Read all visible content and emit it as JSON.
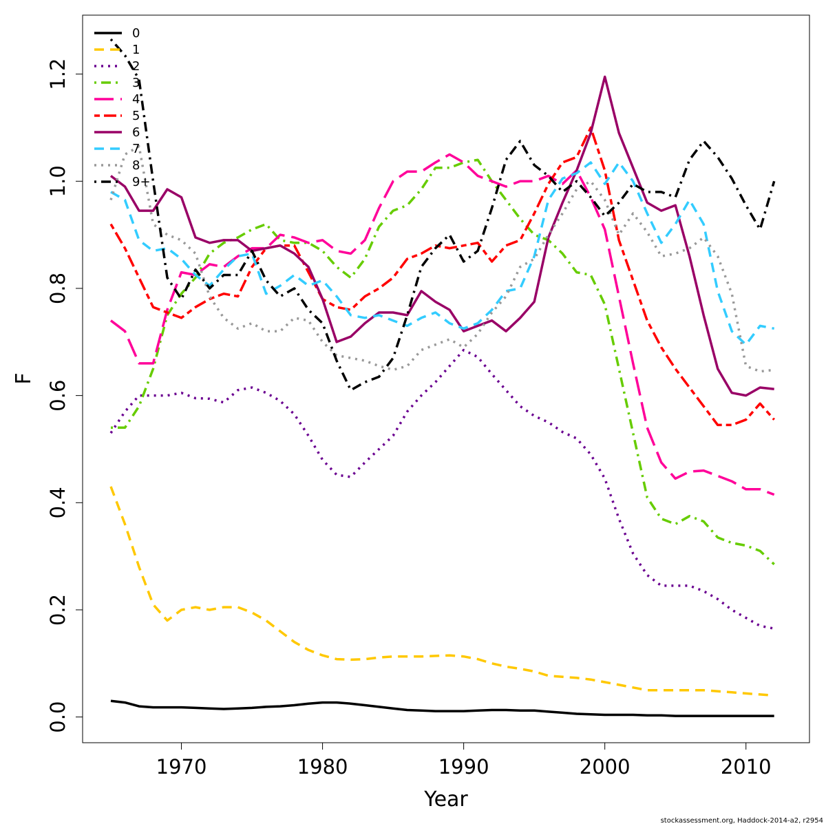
{
  "caption": "stockassessment.org, Haddock-2014-a2, r2954",
  "chart_data": {
    "type": "line",
    "xlabel": "Year",
    "ylabel": "F",
    "xlim": [
      1963,
      2014.5
    ],
    "ylim": [
      -0.048,
      1.31
    ],
    "x_ticks": [
      1970,
      1980,
      1990,
      2000,
      2010
    ],
    "y_ticks": [
      0.0,
      0.2,
      0.4,
      0.6,
      0.8,
      1.0,
      1.2
    ],
    "x_tick_labels": [
      "1970",
      "1980",
      "1990",
      "2000",
      "2010"
    ],
    "y_tick_labels": [
      "0.0",
      "0.2",
      "0.4",
      "0.6",
      "0.8",
      "1.0",
      "1.2"
    ],
    "grid": false,
    "legend_position": "top-left",
    "x": [
      1965,
      1966,
      1967,
      1968,
      1969,
      1970,
      1971,
      1972,
      1973,
      1974,
      1975,
      1976,
      1977,
      1978,
      1979,
      1980,
      1981,
      1982,
      1983,
      1984,
      1985,
      1986,
      1987,
      1988,
      1989,
      1990,
      1991,
      1992,
      1993,
      1994,
      1995,
      1996,
      1997,
      1998,
      1999,
      2000,
      2001,
      2002,
      2003,
      2004,
      2005,
      2006,
      2007,
      2008,
      2009,
      2010,
      2011,
      2012
    ],
    "series": [
      {
        "name": "0",
        "color": "#000000",
        "dash": "solid",
        "values": [
          0.03,
          0.027,
          0.02,
          0.018,
          0.018,
          0.018,
          0.017,
          0.016,
          0.015,
          0.016,
          0.017,
          0.019,
          0.02,
          0.022,
          0.025,
          0.027,
          0.027,
          0.025,
          0.022,
          0.019,
          0.016,
          0.013,
          0.012,
          0.011,
          0.011,
          0.011,
          0.012,
          0.013,
          0.013,
          0.012,
          0.012,
          0.01,
          0.008,
          0.006,
          0.005,
          0.004,
          0.004,
          0.004,
          0.003,
          0.003,
          0.002,
          0.002,
          0.002,
          0.002,
          0.002,
          0.002,
          0.002,
          0.002
        ]
      },
      {
        "name": "1",
        "color": "#FFC800",
        "dash": "dash",
        "values": [
          0.43,
          0.36,
          0.28,
          0.21,
          0.18,
          0.2,
          0.205,
          0.2,
          0.205,
          0.205,
          0.195,
          0.18,
          0.16,
          0.14,
          0.125,
          0.115,
          0.108,
          0.107,
          0.108,
          0.111,
          0.113,
          0.113,
          0.113,
          0.114,
          0.115,
          0.113,
          0.108,
          0.1,
          0.094,
          0.09,
          0.085,
          0.077,
          0.075,
          0.073,
          0.07,
          0.065,
          0.06,
          0.055,
          0.05,
          0.05,
          0.05,
          0.05,
          0.05,
          0.048,
          0.046,
          0.044,
          0.042,
          0.04
        ]
      },
      {
        "name": "2",
        "color": "#6A0090",
        "dash": "dot",
        "values": [
          0.53,
          0.57,
          0.6,
          0.6,
          0.6,
          0.605,
          0.595,
          0.594,
          0.587,
          0.61,
          0.615,
          0.605,
          0.59,
          0.565,
          0.525,
          0.48,
          0.452,
          0.448,
          0.475,
          0.5,
          0.525,
          0.57,
          0.6,
          0.625,
          0.655,
          0.685,
          0.672,
          0.64,
          0.61,
          0.58,
          0.562,
          0.55,
          0.532,
          0.52,
          0.49,
          0.445,
          0.37,
          0.305,
          0.265,
          0.245,
          0.245,
          0.245,
          0.235,
          0.22,
          0.2,
          0.185,
          0.17,
          0.165
        ]
      },
      {
        "name": "3",
        "color": "#66CC00",
        "dash": "dashdot",
        "values": [
          0.54,
          0.54,
          0.58,
          0.65,
          0.75,
          0.79,
          0.82,
          0.865,
          0.885,
          0.895,
          0.91,
          0.92,
          0.89,
          0.885,
          0.885,
          0.87,
          0.84,
          0.82,
          0.855,
          0.915,
          0.945,
          0.955,
          0.985,
          1.025,
          1.025,
          1.035,
          1.04,
          1.0,
          0.965,
          0.93,
          0.9,
          0.89,
          0.865,
          0.83,
          0.825,
          0.77,
          0.65,
          0.53,
          0.41,
          0.37,
          0.36,
          0.375,
          0.365,
          0.335,
          0.325,
          0.32,
          0.31,
          0.285
        ]
      },
      {
        "name": "4",
        "color": "#FF0099",
        "dash": "longdash",
        "values": [
          0.74,
          0.72,
          0.66,
          0.66,
          0.76,
          0.83,
          0.825,
          0.845,
          0.84,
          0.86,
          0.875,
          0.875,
          0.9,
          0.895,
          0.885,
          0.89,
          0.87,
          0.865,
          0.89,
          0.95,
          1.0,
          1.018,
          1.018,
          1.035,
          1.05,
          1.035,
          1.01,
          1.0,
          0.99,
          1.0,
          1.0,
          1.01,
          0.995,
          1.02,
          0.97,
          0.91,
          0.785,
          0.66,
          0.54,
          0.475,
          0.445,
          0.458,
          0.46,
          0.45,
          0.44,
          0.425,
          0.425,
          0.415
        ]
      },
      {
        "name": "5",
        "color": "#FF0000",
        "dash": "twodash",
        "values": [
          0.92,
          0.875,
          0.82,
          0.765,
          0.755,
          0.745,
          0.765,
          0.78,
          0.79,
          0.785,
          0.84,
          0.875,
          0.88,
          0.88,
          0.83,
          0.78,
          0.765,
          0.76,
          0.785,
          0.8,
          0.82,
          0.855,
          0.865,
          0.88,
          0.875,
          0.88,
          0.885,
          0.85,
          0.88,
          0.89,
          0.94,
          0.995,
          1.035,
          1.045,
          1.1,
          1.02,
          0.89,
          0.815,
          0.74,
          0.69,
          0.65,
          0.615,
          0.58,
          0.545,
          0.545,
          0.555,
          0.585,
          0.555
        ]
      },
      {
        "name": "6",
        "color": "#990066",
        "dash": "solid",
        "values": [
          1.01,
          0.99,
          0.945,
          0.945,
          0.985,
          0.97,
          0.895,
          0.885,
          0.89,
          0.89,
          0.87,
          0.875,
          0.88,
          0.865,
          0.84,
          0.78,
          0.7,
          0.71,
          0.735,
          0.755,
          0.755,
          0.75,
          0.795,
          0.775,
          0.76,
          0.72,
          0.73,
          0.74,
          0.72,
          0.745,
          0.775,
          0.895,
          0.96,
          1.02,
          1.09,
          1.195,
          1.09,
          1.025,
          0.96,
          0.945,
          0.955,
          0.86,
          0.75,
          0.65,
          0.605,
          0.6,
          0.615,
          0.612
        ]
      },
      {
        "name": "7",
        "color": "#33CCFF",
        "dash": "dash",
        "values": [
          0.98,
          0.965,
          0.89,
          0.87,
          0.875,
          0.855,
          0.825,
          0.805,
          0.835,
          0.86,
          0.865,
          0.79,
          0.805,
          0.825,
          0.805,
          0.815,
          0.785,
          0.75,
          0.745,
          0.75,
          0.74,
          0.73,
          0.745,
          0.755,
          0.735,
          0.725,
          0.735,
          0.76,
          0.795,
          0.8,
          0.86,
          0.965,
          1.005,
          1.015,
          1.035,
          0.995,
          1.035,
          1.0,
          0.94,
          0.885,
          0.92,
          0.965,
          0.92,
          0.795,
          0.72,
          0.695,
          0.73,
          0.725
        ]
      },
      {
        "name": "8",
        "color": "#999999",
        "dash": "dot",
        "values": [
          0.965,
          1.05,
          1.065,
          0.92,
          0.9,
          0.89,
          0.865,
          0.785,
          0.745,
          0.725,
          0.735,
          0.72,
          0.72,
          0.745,
          0.74,
          0.7,
          0.675,
          0.67,
          0.665,
          0.655,
          0.648,
          0.655,
          0.685,
          0.695,
          0.705,
          0.69,
          0.715,
          0.755,
          0.785,
          0.84,
          0.855,
          0.9,
          0.94,
          0.985,
          1.0,
          0.965,
          0.9,
          0.94,
          0.905,
          0.86,
          0.865,
          0.875,
          0.895,
          0.86,
          0.79,
          0.655,
          0.645,
          0.648
        ]
      },
      {
        "name": "9+",
        "color": "#000000",
        "dash": "dashdot",
        "values": [
          1.265,
          1.235,
          1.19,
          1.0,
          0.82,
          0.78,
          0.835,
          0.8,
          0.825,
          0.825,
          0.87,
          0.815,
          0.785,
          0.8,
          0.76,
          0.735,
          0.665,
          0.61,
          0.625,
          0.635,
          0.67,
          0.75,
          0.84,
          0.875,
          0.9,
          0.85,
          0.87,
          0.95,
          1.04,
          1.075,
          1.03,
          1.01,
          0.98,
          1.0,
          0.97,
          0.935,
          0.96,
          0.995,
          0.98,
          0.98,
          0.97,
          1.04,
          1.075,
          1.045,
          1.005,
          0.955,
          0.91,
          1.0
        ]
      }
    ]
  }
}
